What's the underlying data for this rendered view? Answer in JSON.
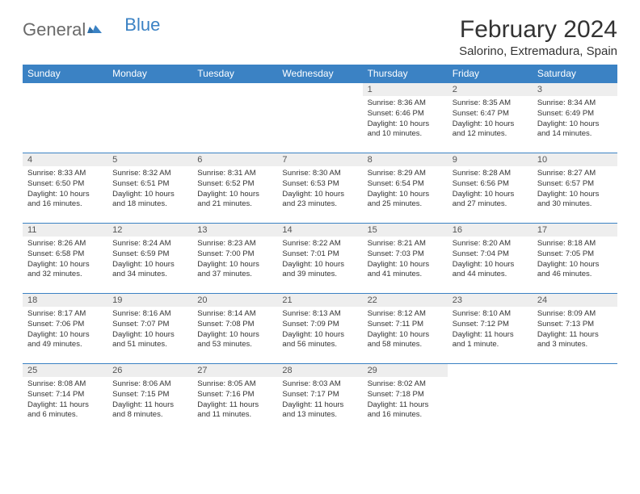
{
  "brand": {
    "part1": "General",
    "part2": "Blue"
  },
  "title": "February 2024",
  "location": "Salorino, Extremadura, Spain",
  "colors": {
    "header_bg": "#3b82c4",
    "header_text": "#ffffff",
    "daynum_bg": "#eeeeee",
    "daynum_text": "#555555",
    "body_text": "#333333",
    "border": "#3b82c4",
    "logo_gray": "#6a6a6a",
    "logo_blue": "#3b82c4",
    "page_bg": "#ffffff"
  },
  "typography": {
    "title_fontsize": 30,
    "location_fontsize": 15,
    "dayheader_fontsize": 12,
    "daynum_fontsize": 11,
    "body_fontsize": 9.5,
    "logo_fontsize": 22
  },
  "day_headers": [
    "Sunday",
    "Monday",
    "Tuesday",
    "Wednesday",
    "Thursday",
    "Friday",
    "Saturday"
  ],
  "weeks": [
    [
      null,
      null,
      null,
      null,
      {
        "num": "1",
        "sunrise": "Sunrise: 8:36 AM",
        "sunset": "Sunset: 6:46 PM",
        "daylight": "Daylight: 10 hours and 10 minutes."
      },
      {
        "num": "2",
        "sunrise": "Sunrise: 8:35 AM",
        "sunset": "Sunset: 6:47 PM",
        "daylight": "Daylight: 10 hours and 12 minutes."
      },
      {
        "num": "3",
        "sunrise": "Sunrise: 8:34 AM",
        "sunset": "Sunset: 6:49 PM",
        "daylight": "Daylight: 10 hours and 14 minutes."
      }
    ],
    [
      {
        "num": "4",
        "sunrise": "Sunrise: 8:33 AM",
        "sunset": "Sunset: 6:50 PM",
        "daylight": "Daylight: 10 hours and 16 minutes."
      },
      {
        "num": "5",
        "sunrise": "Sunrise: 8:32 AM",
        "sunset": "Sunset: 6:51 PM",
        "daylight": "Daylight: 10 hours and 18 minutes."
      },
      {
        "num": "6",
        "sunrise": "Sunrise: 8:31 AM",
        "sunset": "Sunset: 6:52 PM",
        "daylight": "Daylight: 10 hours and 21 minutes."
      },
      {
        "num": "7",
        "sunrise": "Sunrise: 8:30 AM",
        "sunset": "Sunset: 6:53 PM",
        "daylight": "Daylight: 10 hours and 23 minutes."
      },
      {
        "num": "8",
        "sunrise": "Sunrise: 8:29 AM",
        "sunset": "Sunset: 6:54 PM",
        "daylight": "Daylight: 10 hours and 25 minutes."
      },
      {
        "num": "9",
        "sunrise": "Sunrise: 8:28 AM",
        "sunset": "Sunset: 6:56 PM",
        "daylight": "Daylight: 10 hours and 27 minutes."
      },
      {
        "num": "10",
        "sunrise": "Sunrise: 8:27 AM",
        "sunset": "Sunset: 6:57 PM",
        "daylight": "Daylight: 10 hours and 30 minutes."
      }
    ],
    [
      {
        "num": "11",
        "sunrise": "Sunrise: 8:26 AM",
        "sunset": "Sunset: 6:58 PM",
        "daylight": "Daylight: 10 hours and 32 minutes."
      },
      {
        "num": "12",
        "sunrise": "Sunrise: 8:24 AM",
        "sunset": "Sunset: 6:59 PM",
        "daylight": "Daylight: 10 hours and 34 minutes."
      },
      {
        "num": "13",
        "sunrise": "Sunrise: 8:23 AM",
        "sunset": "Sunset: 7:00 PM",
        "daylight": "Daylight: 10 hours and 37 minutes."
      },
      {
        "num": "14",
        "sunrise": "Sunrise: 8:22 AM",
        "sunset": "Sunset: 7:01 PM",
        "daylight": "Daylight: 10 hours and 39 minutes."
      },
      {
        "num": "15",
        "sunrise": "Sunrise: 8:21 AM",
        "sunset": "Sunset: 7:03 PM",
        "daylight": "Daylight: 10 hours and 41 minutes."
      },
      {
        "num": "16",
        "sunrise": "Sunrise: 8:20 AM",
        "sunset": "Sunset: 7:04 PM",
        "daylight": "Daylight: 10 hours and 44 minutes."
      },
      {
        "num": "17",
        "sunrise": "Sunrise: 8:18 AM",
        "sunset": "Sunset: 7:05 PM",
        "daylight": "Daylight: 10 hours and 46 minutes."
      }
    ],
    [
      {
        "num": "18",
        "sunrise": "Sunrise: 8:17 AM",
        "sunset": "Sunset: 7:06 PM",
        "daylight": "Daylight: 10 hours and 49 minutes."
      },
      {
        "num": "19",
        "sunrise": "Sunrise: 8:16 AM",
        "sunset": "Sunset: 7:07 PM",
        "daylight": "Daylight: 10 hours and 51 minutes."
      },
      {
        "num": "20",
        "sunrise": "Sunrise: 8:14 AM",
        "sunset": "Sunset: 7:08 PM",
        "daylight": "Daylight: 10 hours and 53 minutes."
      },
      {
        "num": "21",
        "sunrise": "Sunrise: 8:13 AM",
        "sunset": "Sunset: 7:09 PM",
        "daylight": "Daylight: 10 hours and 56 minutes."
      },
      {
        "num": "22",
        "sunrise": "Sunrise: 8:12 AM",
        "sunset": "Sunset: 7:11 PM",
        "daylight": "Daylight: 10 hours and 58 minutes."
      },
      {
        "num": "23",
        "sunrise": "Sunrise: 8:10 AM",
        "sunset": "Sunset: 7:12 PM",
        "daylight": "Daylight: 11 hours and 1 minute."
      },
      {
        "num": "24",
        "sunrise": "Sunrise: 8:09 AM",
        "sunset": "Sunset: 7:13 PM",
        "daylight": "Daylight: 11 hours and 3 minutes."
      }
    ],
    [
      {
        "num": "25",
        "sunrise": "Sunrise: 8:08 AM",
        "sunset": "Sunset: 7:14 PM",
        "daylight": "Daylight: 11 hours and 6 minutes."
      },
      {
        "num": "26",
        "sunrise": "Sunrise: 8:06 AM",
        "sunset": "Sunset: 7:15 PM",
        "daylight": "Daylight: 11 hours and 8 minutes."
      },
      {
        "num": "27",
        "sunrise": "Sunrise: 8:05 AM",
        "sunset": "Sunset: 7:16 PM",
        "daylight": "Daylight: 11 hours and 11 minutes."
      },
      {
        "num": "28",
        "sunrise": "Sunrise: 8:03 AM",
        "sunset": "Sunset: 7:17 PM",
        "daylight": "Daylight: 11 hours and 13 minutes."
      },
      {
        "num": "29",
        "sunrise": "Sunrise: 8:02 AM",
        "sunset": "Sunset: 7:18 PM",
        "daylight": "Daylight: 11 hours and 16 minutes."
      },
      null,
      null
    ]
  ]
}
